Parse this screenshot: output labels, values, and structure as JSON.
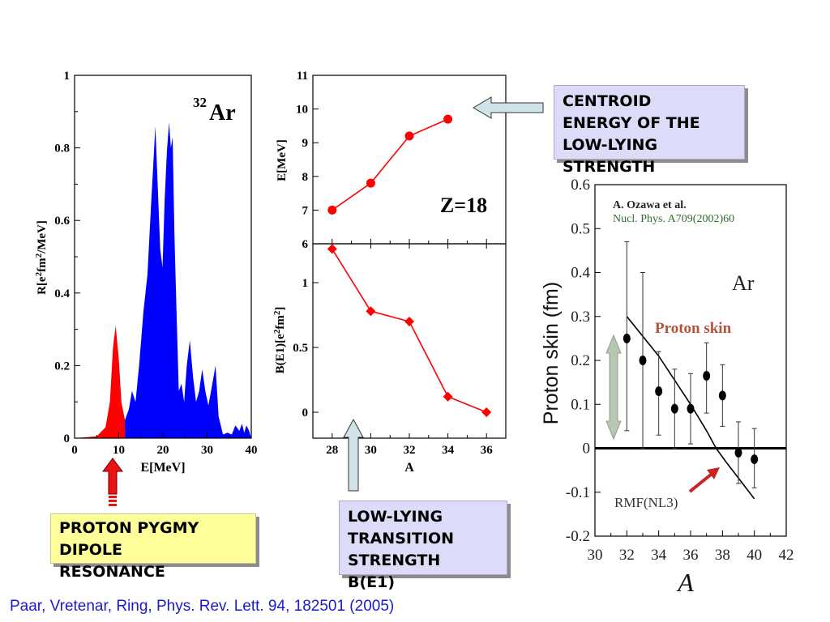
{
  "chart_data": [
    {
      "type": "area",
      "title_mass": "32",
      "title_element": "Ar",
      "xlabel": "E[MeV]",
      "ylabel_parts": [
        "R[e",
        "2",
        "fm",
        "2",
        "/MeV]"
      ],
      "xlim": [
        0,
        40
      ],
      "ylim": [
        0,
        1
      ],
      "xticks": [
        "0",
        "10",
        "20",
        "30",
        "40"
      ],
      "yticks": [
        "0",
        "0.2",
        "0.4",
        "0.6",
        "0.8",
        "1"
      ],
      "ytick_values": [
        0,
        0.2,
        0.4,
        0.6,
        0.8,
        1
      ],
      "series": [
        {
          "name": "pygmy",
          "color": "#ff0000",
          "x": [
            0,
            5,
            7,
            8,
            8.7,
            9.3,
            10,
            10.6,
            11.4
          ],
          "y": [
            0,
            0.005,
            0.03,
            0.1,
            0.25,
            0.31,
            0.22,
            0.1,
            0.05
          ]
        },
        {
          "name": "giant",
          "color": "#0000ff",
          "x": [
            11.4,
            12.3,
            13,
            13.8,
            14.6,
            15.6,
            16.5,
            17.3,
            17.8,
            18.3,
            18.8,
            19.4,
            19.9,
            20.4,
            20.9,
            21.4,
            21.8,
            22.2,
            22.6,
            23.1,
            23.6,
            24.2,
            24.8,
            25.4,
            26.1,
            26.8,
            27.5,
            28.2,
            28.9,
            29.6,
            30.3,
            31.2,
            31.9,
            32.6,
            33.6,
            34.6,
            35.6,
            36.4,
            37.3,
            37.9,
            38.4,
            38.9,
            39.5,
            40
          ],
          "y": [
            0.05,
            0.08,
            0.13,
            0.1,
            0.2,
            0.35,
            0.45,
            0.64,
            0.75,
            0.86,
            0.7,
            0.52,
            0.47,
            0.66,
            0.79,
            0.87,
            0.8,
            0.83,
            0.56,
            0.34,
            0.13,
            0.15,
            0.1,
            0.2,
            0.27,
            0.17,
            0.1,
            0.13,
            0.19,
            0.13,
            0.09,
            0.15,
            0.2,
            0.06,
            0.01,
            0.015,
            0.01,
            0.035,
            0.02,
            0.04,
            0.015,
            0.035,
            0.02,
            0
          ]
        }
      ]
    },
    {
      "type": "line",
      "xlabel": "A",
      "x": [
        28,
        30,
        32,
        34,
        36
      ],
      "xticks": [
        "28",
        "30",
        "32",
        "34",
        "36"
      ],
      "top": {
        "ylabel": "E[MeV]",
        "ylim": [
          6,
          11
        ],
        "yticks": [
          "6",
          "7",
          "8",
          "9",
          "10",
          "11"
        ],
        "label": "Z=18",
        "series": [
          {
            "name": "Centroid energy",
            "color": "#ff0000",
            "marker": "circle",
            "x": [
              28,
              30,
              32,
              34
            ],
            "y": [
              7.0,
              7.8,
              9.2,
              9.7
            ]
          }
        ]
      },
      "bottom": {
        "ylabel_parts": [
          "B(E1)[e",
          "2",
          "fm",
          "2",
          "]"
        ],
        "ylim": [
          -0.2,
          1.3
        ],
        "yticks": [
          "0",
          "0.5",
          "1"
        ],
        "ytick_values": [
          0,
          0.5,
          1
        ],
        "series": [
          {
            "name": "B(E1)",
            "color": "#ff0000",
            "marker": "diamond",
            "x": [
              28,
              30,
              32,
              34,
              36
            ],
            "y": [
              1.26,
              0.78,
              0.7,
              0.12,
              0.0
            ]
          }
        ]
      }
    },
    {
      "type": "scatter",
      "xlabel": "A",
      "ylabel": "Proton skin  (fm)",
      "xlim": [
        30,
        42
      ],
      "ylim": [
        -0.2,
        0.6
      ],
      "xticks": [
        "30",
        "32",
        "34",
        "36",
        "38",
        "40",
        "42"
      ],
      "yticks": [
        "-0.2",
        "-0.1",
        "0",
        "0.1",
        "0.2",
        "0.3",
        "0.4",
        "0.5",
        "0.6"
      ],
      "ytick_values": [
        -0.2,
        -0.1,
        0,
        0.1,
        0.2,
        0.3,
        0.4,
        0.5,
        0.6
      ],
      "reference_author": "A. Ozawa et al.",
      "reference_journal": "Nucl. Phys. A709(2002)60",
      "element_label": "Ar",
      "curve_label": "Proton skin",
      "model_label": "RMF(NL3)",
      "data": {
        "x": [
          32,
          33,
          34,
          35,
          36,
          37,
          38,
          39,
          40
        ],
        "y": [
          0.25,
          0.2,
          0.13,
          0.09,
          0.09,
          0.165,
          0.12,
          -0.01,
          -0.025
        ],
        "ylow": [
          0.04,
          0.0,
          0.03,
          0.0,
          0.01,
          0.08,
          0.05,
          -0.08,
          -0.09
        ],
        "yhigh": [
          0.47,
          0.4,
          0.22,
          0.18,
          0.17,
          0.24,
          0.19,
          0.06,
          0.045
        ]
      },
      "model_curve": {
        "x": [
          32,
          34,
          36,
          37,
          37.6,
          38.2,
          40
        ],
        "y": [
          0.3,
          0.21,
          0.1,
          0.04,
          0.0,
          -0.03,
          -0.115
        ]
      }
    }
  ],
  "annotations": {
    "pygmy_box": [
      "PROTON PYGMY",
      "DIPOLE",
      "RESONANCE"
    ],
    "centroid_box": [
      "CENTROID",
      "ENERGY OF THE",
      "LOW-LYING",
      "STRENGTH"
    ],
    "transition_box": [
      "LOW-LYING",
      "TRANSITION",
      "STRENGTH",
      "B(E1)"
    ],
    "citation": "Paar, Vretenar, Ring,  Phys. Rev. Lett. 94, 182501 (2005)"
  },
  "colors": {
    "red": "#ff0000",
    "blue": "#0000ff",
    "annotation_red": "#cc2222",
    "arrow_fill": "#cfe3e8",
    "box_yellow": "#ffff99",
    "box_lavender": "#dcdcf8",
    "citation_blue": "#1a1acc"
  }
}
